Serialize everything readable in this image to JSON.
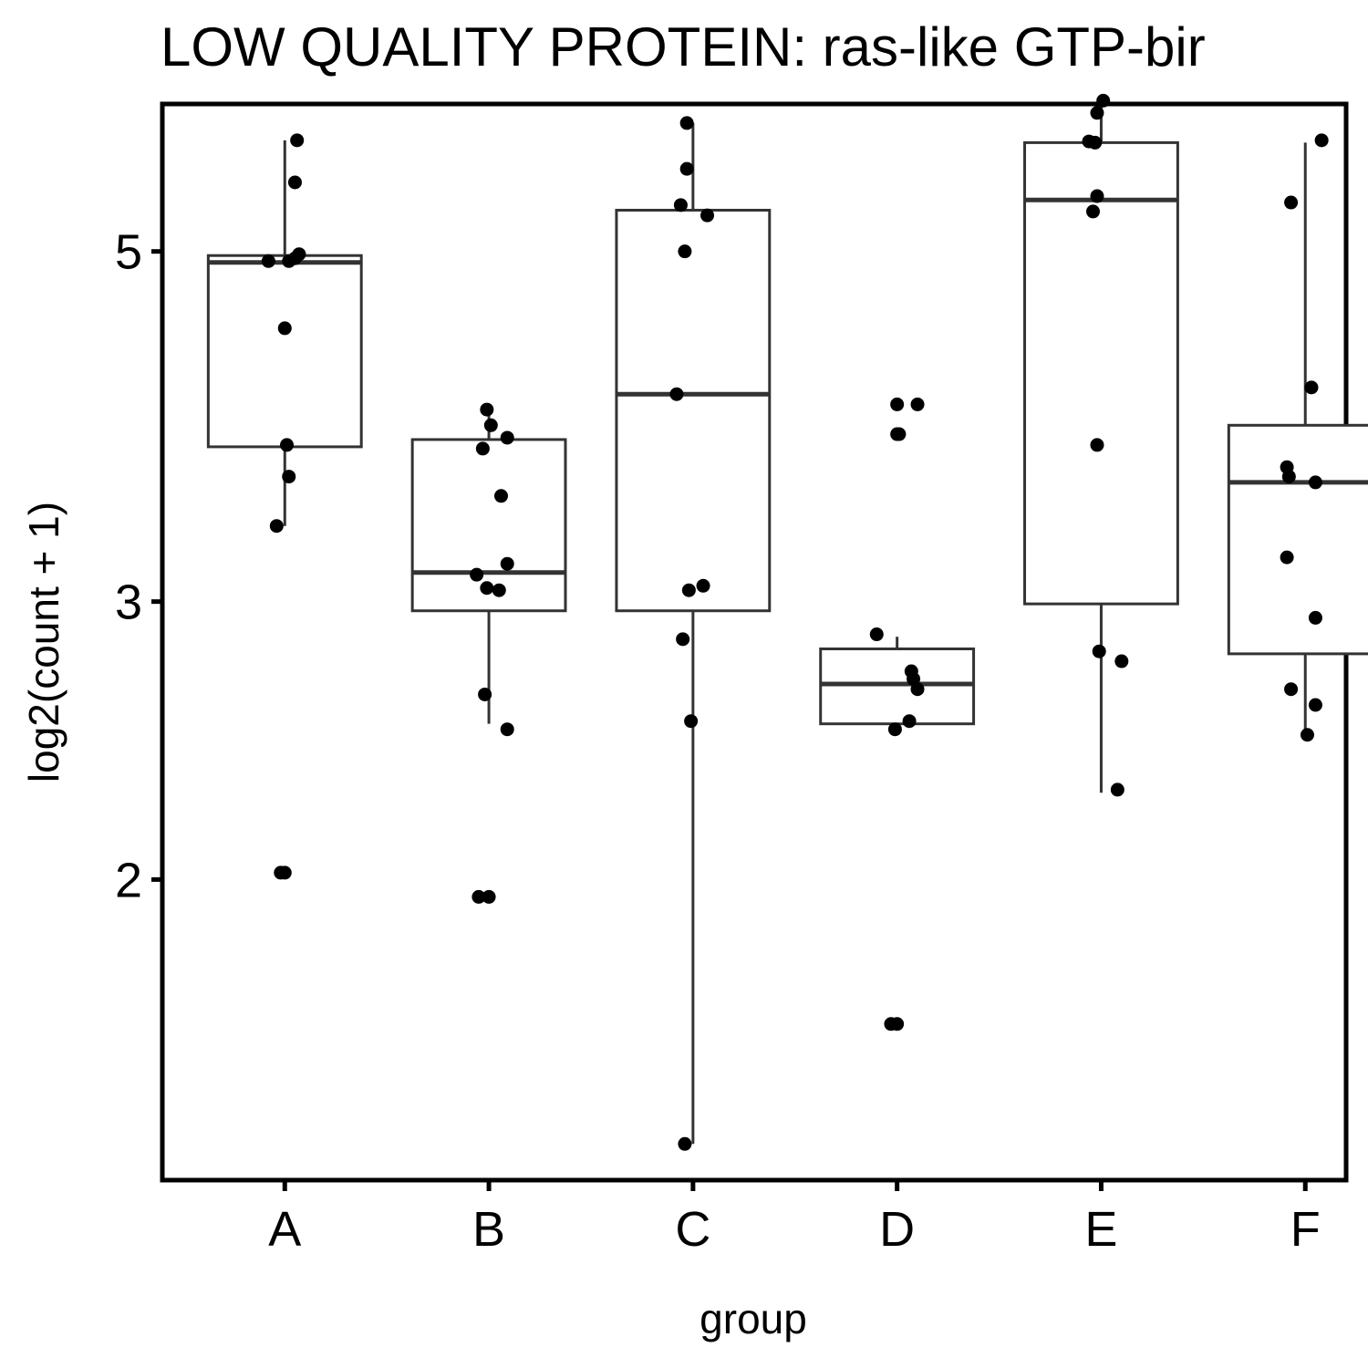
{
  "chart_data": {
    "type": "box",
    "title": "LOW QUALITY PROTEIN: ras-like GTP-bir",
    "xlabel": "group",
    "ylabel": "log2(count + 1)",
    "y_scale": "log",
    "ylim": [
      1.29,
      6.2
    ],
    "yticks": [
      2,
      3,
      5
    ],
    "categories": [
      "A",
      "B",
      "C",
      "D",
      "E",
      "F"
    ],
    "grid": false,
    "legend": "none",
    "box_color": "#333333",
    "point_color": "#000000",
    "boxes": [
      {
        "group": "A",
        "q1": 3.76,
        "median": 4.92,
        "q3": 4.97,
        "whisker_low": 3.35,
        "whisker_high": 5.88
      },
      {
        "group": "B",
        "q1": 2.96,
        "median": 3.13,
        "q3": 3.8,
        "whisker_low": 2.51,
        "whisker_high": 3.94
      },
      {
        "group": "C",
        "q1": 2.96,
        "median": 4.06,
        "q3": 5.31,
        "whisker_low": 1.36,
        "whisker_high": 6.03
      },
      {
        "group": "D",
        "q1": 2.51,
        "median": 2.66,
        "q3": 2.8,
        "whisker_low": 2.51,
        "whisker_high": 2.85
      },
      {
        "group": "E",
        "q1": 2.99,
        "median": 5.39,
        "q3": 5.86,
        "whisker_low": 2.27,
        "whisker_high": 6.22
      },
      {
        "group": "F",
        "q1": 2.78,
        "median": 3.57,
        "q3": 3.88,
        "whisker_low": 2.48,
        "whisker_high": 5.86
      }
    ],
    "points": [
      {
        "group": "A",
        "values": [
          5.88,
          5.53,
          4.98,
          4.95,
          4.93,
          4.93,
          4.47,
          3.77,
          3.6,
          3.35,
          2.02,
          2.02
        ],
        "jitter": [
          0.06,
          0.05,
          0.07,
          0.05,
          -0.08,
          0.02,
          0.0,
          0.01,
          0.02,
          -0.04,
          -0.02,
          0.0
        ]
      },
      {
        "group": "B",
        "values": [
          3.97,
          3.88,
          3.81,
          3.75,
          3.5,
          3.17,
          3.12,
          3.06,
          3.05,
          2.62,
          2.49,
          1.95,
          1.95
        ],
        "jitter": [
          -0.01,
          0.01,
          0.09,
          -0.03,
          0.06,
          0.09,
          -0.06,
          -0.01,
          0.05,
          -0.02,
          0.09,
          -0.05,
          0.0
        ]
      },
      {
        "group": "C",
        "values": [
          6.03,
          5.64,
          5.35,
          5.27,
          5.0,
          4.06,
          3.07,
          3.05,
          2.84,
          2.52,
          1.36
        ],
        "jitter": [
          -0.03,
          -0.03,
          -0.06,
          0.07,
          -0.04,
          -0.08,
          0.05,
          -0.02,
          -0.05,
          -0.01,
          -0.04
        ]
      },
      {
        "group": "D",
        "values": [
          4.0,
          4.0,
          3.83,
          3.83,
          2.86,
          2.71,
          2.68,
          2.64,
          2.52,
          2.49,
          1.62,
          1.62
        ],
        "jitter": [
          0.0,
          0.1,
          0.0,
          0.01,
          -0.1,
          0.07,
          0.08,
          0.1,
          0.06,
          -0.01,
          -0.03,
          0.0
        ]
      },
      {
        "group": "E",
        "values": [
          6.23,
          6.12,
          5.87,
          5.86,
          5.42,
          5.3,
          3.77,
          2.79,
          2.75,
          2.28
        ],
        "jitter": [
          0.01,
          -0.02,
          -0.06,
          -0.03,
          -0.02,
          -0.04,
          -0.02,
          -0.01,
          0.1,
          0.08
        ]
      },
      {
        "group": "F",
        "values": [
          5.88,
          5.37,
          4.1,
          3.65,
          3.6,
          3.57,
          3.2,
          2.93,
          2.64,
          2.58,
          2.47
        ],
        "jitter": [
          0.08,
          -0.07,
          0.03,
          -0.09,
          -0.08,
          0.05,
          -0.09,
          0.05,
          -0.07,
          0.05,
          0.01
        ]
      }
    ]
  }
}
